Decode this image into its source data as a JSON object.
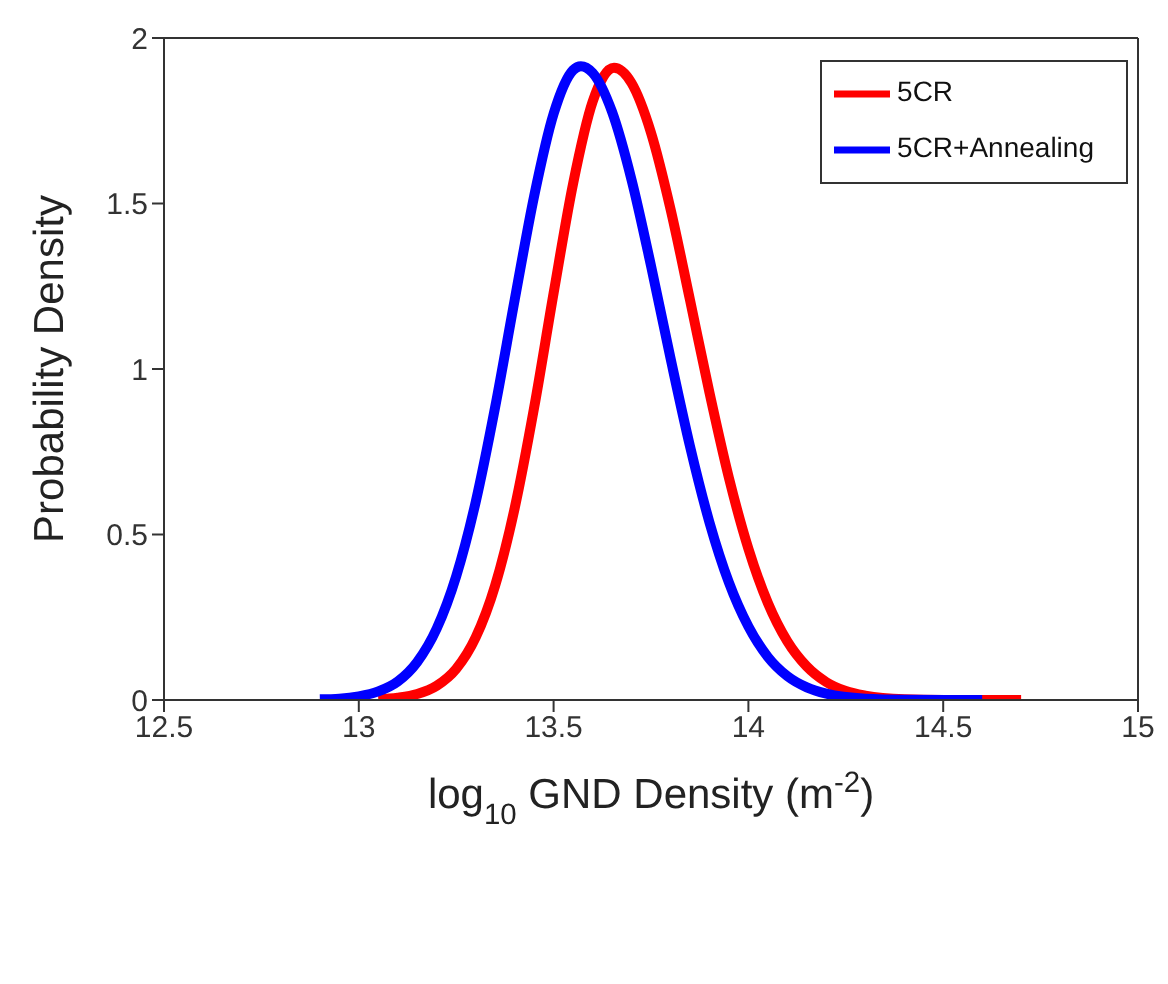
{
  "chart_data": {
    "type": "line",
    "xlabel": "log$_{10}$ GND Density (m$^{-2}$)",
    "ylabel": "Probability Density",
    "xlim": [
      12.5,
      15
    ],
    "xticks": [
      12.5,
      13,
      13.5,
      14,
      14.5,
      15
    ],
    "ylim": [
      0,
      2
    ],
    "yticks": [
      0,
      0.5,
      1,
      1.5,
      2
    ],
    "grid": false,
    "legend": "top right",
    "marker": "none",
    "line_style": "solid",
    "series": [
      {
        "name": "5CR",
        "color": "#ff0000",
        "x": [
          13.05,
          13.1,
          13.15,
          13.2,
          13.25,
          13.3,
          13.35,
          13.4,
          13.45,
          13.5,
          13.55,
          13.6,
          13.655,
          13.7,
          13.75,
          13.8,
          13.85,
          13.9,
          13.95,
          14.0,
          14.05,
          14.1,
          14.15,
          14.2,
          14.25,
          14.3,
          14.4,
          14.5,
          14.7
        ],
        "values": [
          0.002,
          0.007,
          0.018,
          0.043,
          0.094,
          0.189,
          0.346,
          0.579,
          0.883,
          1.229,
          1.56,
          1.807,
          1.91,
          1.864,
          1.714,
          1.484,
          1.209,
          0.929,
          0.671,
          0.457,
          0.293,
          0.177,
          0.101,
          0.054,
          0.027,
          0.013,
          0.002,
          0,
          0
        ]
      },
      {
        "name": "5CR+Annealing",
        "color": "#0000ff",
        "x": [
          12.9,
          12.95,
          13.0,
          13.05,
          13.1,
          13.15,
          13.2,
          13.25,
          13.3,
          13.35,
          13.4,
          13.45,
          13.5,
          13.55,
          13.57,
          13.6,
          13.65,
          13.7,
          13.75,
          13.8,
          13.85,
          13.9,
          13.95,
          14.0,
          14.05,
          14.1,
          14.15,
          14.2,
          14.3,
          14.4,
          14.6
        ],
        "values": [
          0.002,
          0.004,
          0.011,
          0.026,
          0.056,
          0.115,
          0.216,
          0.374,
          0.598,
          0.885,
          1.208,
          1.522,
          1.771,
          1.903,
          1.915,
          1.895,
          1.777,
          1.572,
          1.312,
          1.033,
          0.767,
          0.537,
          0.355,
          0.222,
          0.13,
          0.072,
          0.038,
          0.019,
          0.004,
          0.001,
          0
        ]
      }
    ]
  }
}
